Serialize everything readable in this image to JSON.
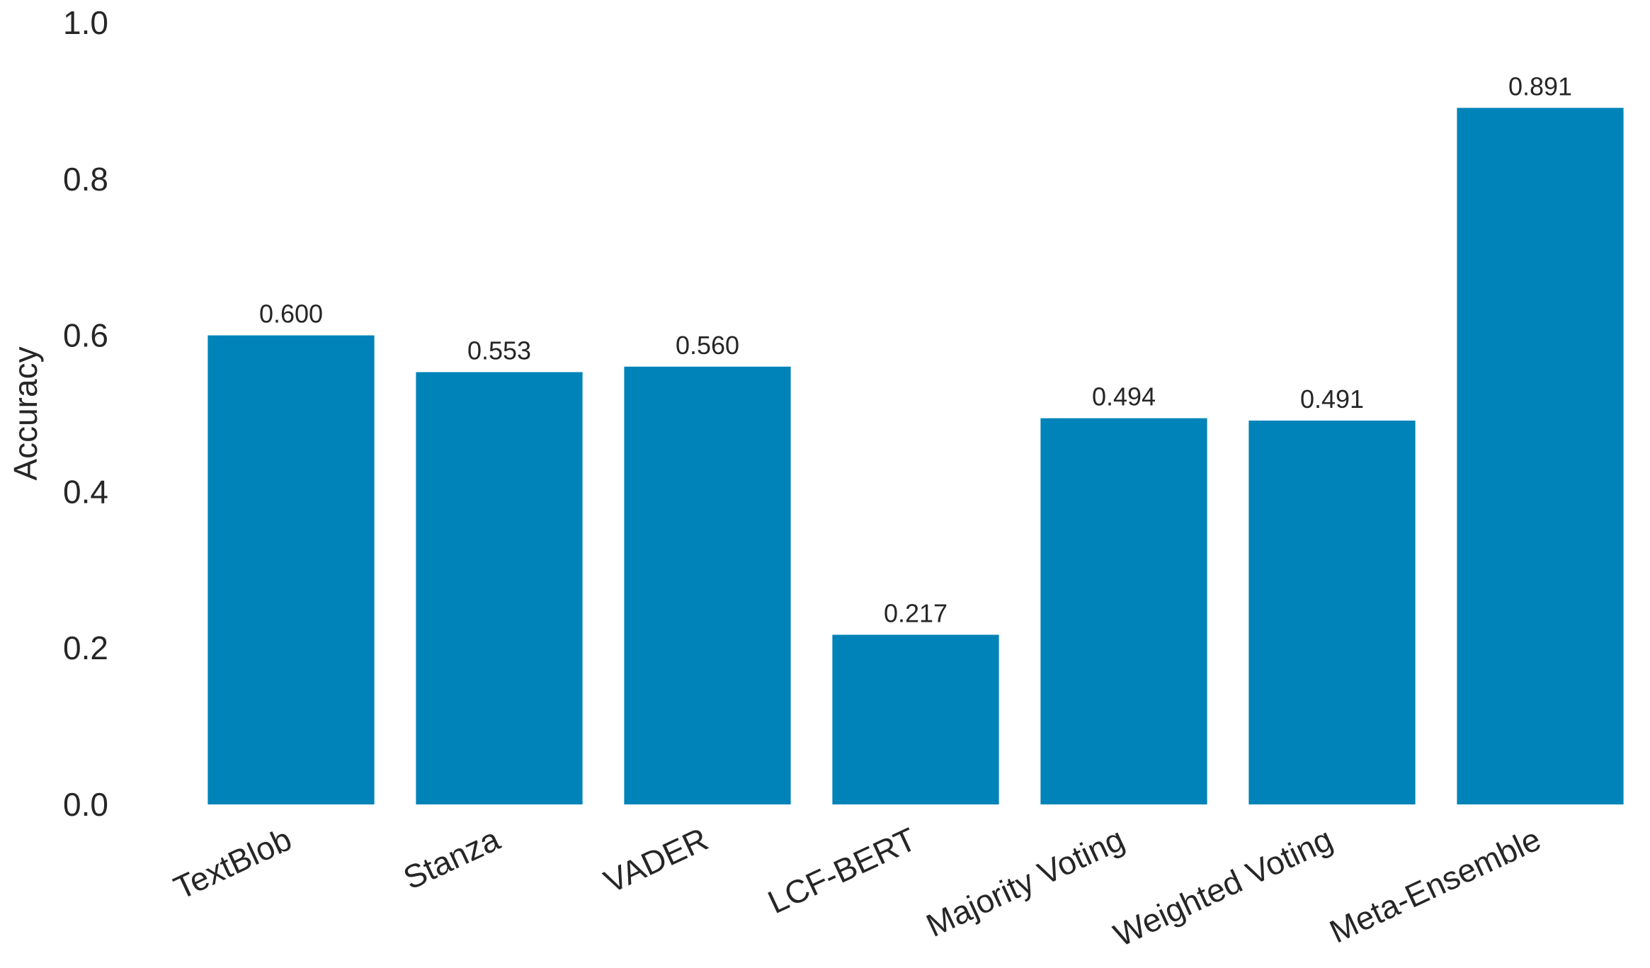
{
  "chart_data": {
    "type": "bar",
    "title": "",
    "xlabel": "",
    "ylabel": "Accuracy",
    "ylim": [
      0,
      1.0
    ],
    "yticks": [
      "0.0",
      "0.2",
      "0.4",
      "0.6",
      "0.8",
      "1.0"
    ],
    "grid": false,
    "categories": [
      "TextBlob",
      "Stanza",
      "VADER",
      "LCF-BERT",
      "Majority Voting",
      "Weighted Voting",
      "Meta-Ensemble"
    ],
    "values": [
      0.6,
      0.553,
      0.56,
      0.217,
      0.494,
      0.491,
      0.891
    ],
    "value_labels": [
      "0.600",
      "0.553",
      "0.560",
      "0.217",
      "0.494",
      "0.491",
      "0.891"
    ],
    "bar_color": "#0083b8"
  }
}
